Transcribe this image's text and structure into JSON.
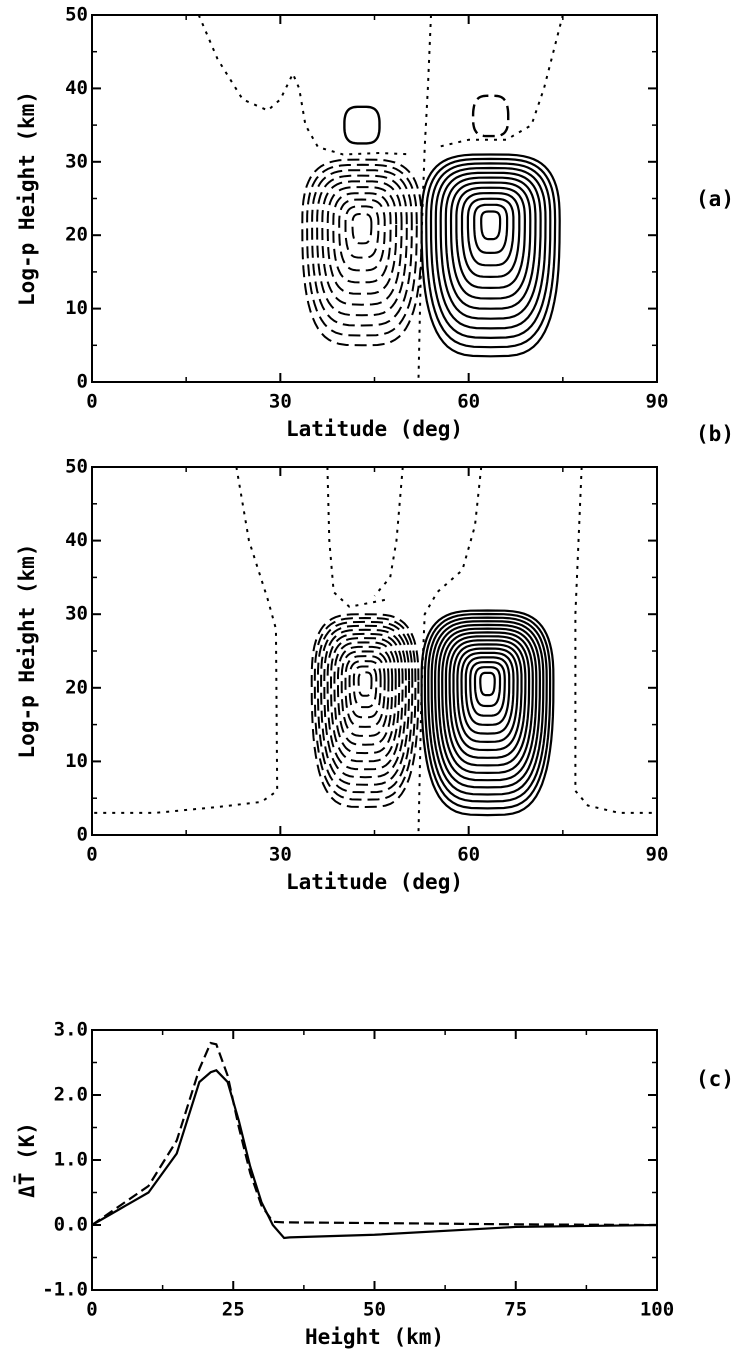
{
  "chart_data": [
    {
      "type": "contour",
      "panel_label": "(a)",
      "xlabel": "Latitude (deg)",
      "ylabel": "Log-p Height (km)",
      "xlim": [
        0,
        90
      ],
      "xticks": [
        0,
        30,
        60,
        90
      ],
      "ylim": [
        0,
        50
      ],
      "yticks": [
        0,
        10,
        20,
        30,
        40,
        50
      ]
    },
    {
      "type": "contour",
      "panel_label": "(b)",
      "xlabel": "Latitude (deg)",
      "ylabel": "Log-p Height (km)",
      "xlim": [
        0,
        90
      ],
      "xticks": [
        0,
        30,
        60,
        90
      ],
      "ylim": [
        0,
        50
      ],
      "yticks": [
        0,
        10,
        20,
        30,
        40,
        50
      ]
    },
    {
      "type": "line",
      "panel_label": "(c)",
      "xlabel": "Height (km)",
      "ylabel": "ΔT̄ (K)",
      "xlim": [
        0,
        100
      ],
      "xticks": [
        0,
        25,
        50,
        75,
        100
      ],
      "ylim": [
        -1,
        3
      ],
      "yticks": [
        {
          "value": -1,
          "label": "-1.0"
        },
        {
          "value": 0,
          "label": "0.0"
        },
        {
          "value": 1,
          "label": "1.0"
        },
        {
          "value": 2,
          "label": "2.0"
        },
        {
          "value": 3,
          "label": "3.0"
        }
      ],
      "x": [
        0,
        5,
        10,
        15,
        19,
        21,
        22,
        24,
        26,
        28,
        30,
        32,
        34,
        35,
        50,
        75,
        100
      ],
      "series": [
        {
          "color": "#000000",
          "style": "solid",
          "values": [
            0,
            0.25,
            0.5,
            1.1,
            2.2,
            2.35,
            2.38,
            2.2,
            1.6,
            0.9,
            0.35,
            0.0,
            -0.2,
            -0.19,
            -0.15,
            -0.03,
            0
          ]
        },
        {
          "color": "#000000",
          "style": "dashed",
          "values": [
            0,
            0.3,
            0.6,
            1.3,
            2.4,
            2.8,
            2.78,
            2.3,
            1.5,
            0.8,
            0.3,
            0.05,
            0.04,
            0.04,
            0.03,
            0.01,
            0
          ]
        }
      ]
    }
  ]
}
